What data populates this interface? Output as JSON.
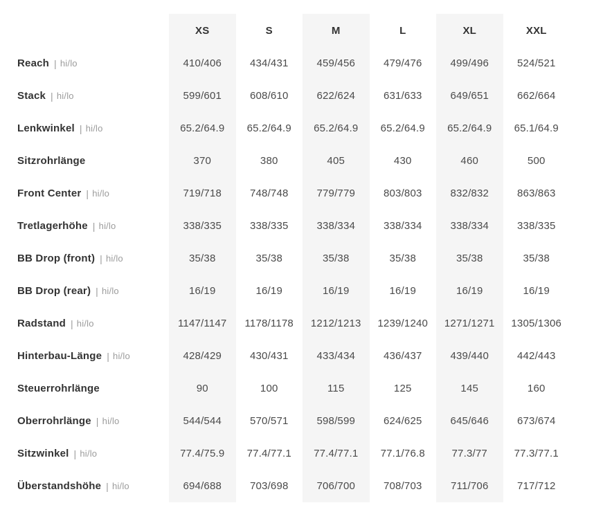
{
  "colors": {
    "background": "#ffffff",
    "stripe_bg": "#f5f5f5",
    "label_text": "#333333",
    "value_text": "#4a4a4a",
    "muted_text": "#9b9b9b"
  },
  "chart_data": {
    "type": "table",
    "columns": [
      "XS",
      "S",
      "M",
      "L",
      "XL",
      "XXL"
    ],
    "striped_columns": [
      "XS",
      "M",
      "XL"
    ],
    "rows": [
      {
        "label": "Reach",
        "sep": "|",
        "suffix": "hi/lo",
        "values": [
          "410/406",
          "434/431",
          "459/456",
          "479/476",
          "499/496",
          "524/521"
        ]
      },
      {
        "label": "Stack",
        "sep": "|",
        "suffix": "hi/lo",
        "values": [
          "599/601",
          "608/610",
          "622/624",
          "631/633",
          "649/651",
          "662/664"
        ]
      },
      {
        "label": "Lenkwinkel",
        "sep": "|",
        "suffix": "hi/lo",
        "values": [
          "65.2/64.9",
          "65.2/64.9",
          "65.2/64.9",
          "65.2/64.9",
          "65.2/64.9",
          "65.1/64.9"
        ]
      },
      {
        "label": "Sitzrohrlänge",
        "sep": "",
        "suffix": "",
        "values": [
          "370",
          "380",
          "405",
          "430",
          "460",
          "500"
        ]
      },
      {
        "label": "Front Center",
        "sep": "|",
        "suffix": "hi/lo",
        "values": [
          "719/718",
          "748/748",
          "779/779",
          "803/803",
          "832/832",
          "863/863"
        ]
      },
      {
        "label": "Tretlagerhöhe",
        "sep": "|",
        "suffix": "hi/lo",
        "values": [
          "338/335",
          "338/335",
          "338/334",
          "338/334",
          "338/334",
          "338/335"
        ]
      },
      {
        "label": "BB Drop (front)",
        "sep": "|",
        "suffix": "hi/lo",
        "values": [
          "35/38",
          "35/38",
          "35/38",
          "35/38",
          "35/38",
          "35/38"
        ]
      },
      {
        "label": "BB Drop (rear)",
        "sep": "|",
        "suffix": "hi/lo",
        "values": [
          "16/19",
          "16/19",
          "16/19",
          "16/19",
          "16/19",
          "16/19"
        ]
      },
      {
        "label": "Radstand",
        "sep": "|",
        "suffix": "hi/lo",
        "values": [
          "1147/1147",
          "1178/1178",
          "1212/1213",
          "1239/1240",
          "1271/1271",
          "1305/1306"
        ]
      },
      {
        "label": "Hinterbau-Länge",
        "sep": "|",
        "suffix": "hi/lo",
        "values": [
          "428/429",
          "430/431",
          "433/434",
          "436/437",
          "439/440",
          "442/443"
        ]
      },
      {
        "label": "Steuerrohrlänge",
        "sep": "",
        "suffix": "",
        "values": [
          "90",
          "100",
          "115",
          "125",
          "145",
          "160"
        ]
      },
      {
        "label": "Oberrohrlänge",
        "sep": "|",
        "suffix": "hi/lo",
        "values": [
          "544/544",
          "570/571",
          "598/599",
          "624/625",
          "645/646",
          "673/674"
        ]
      },
      {
        "label": "Sitzwinkel",
        "sep": "|",
        "suffix": "hi/lo",
        "values": [
          "77.4/75.9",
          "77.4/77.1",
          "77.4/77.1",
          "77.1/76.8",
          "77.3/77",
          "77.3/77.1"
        ]
      },
      {
        "label": "Überstandshöhe",
        "sep": "|",
        "suffix": "hi/lo",
        "values": [
          "694/688",
          "703/698",
          "706/700",
          "708/703",
          "711/706",
          "717/712"
        ]
      }
    ]
  }
}
